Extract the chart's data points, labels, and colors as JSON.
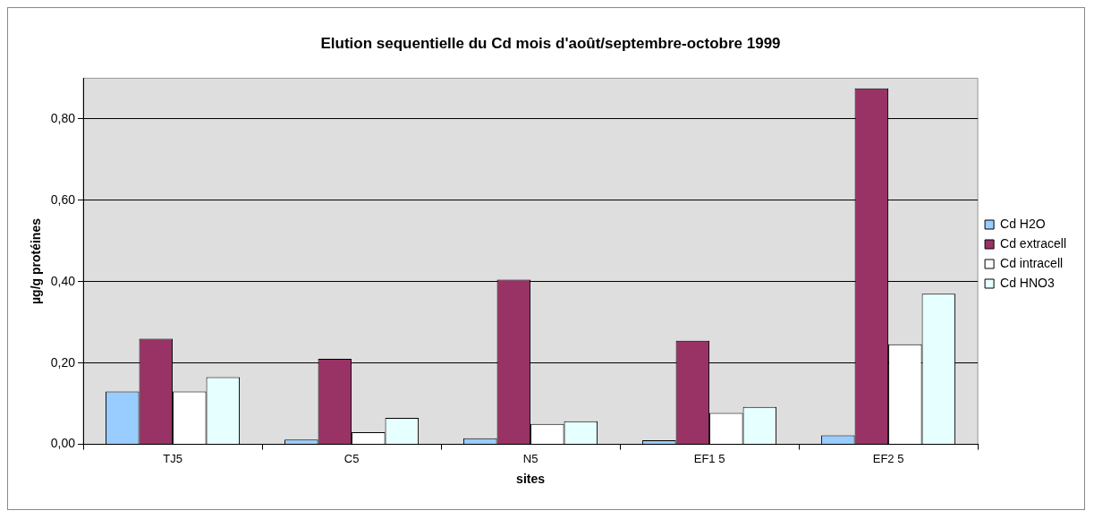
{
  "chart_data": {
    "type": "bar",
    "title": "Elution sequentielle du Cd mois d'août/septembre-octobre 1999",
    "xlabel": "sites",
    "ylabel": "µg/g protéines",
    "categories": [
      "TJ5",
      "C5",
      "N5",
      "EF1 5",
      "EF2 5"
    ],
    "series": [
      {
        "name": "Cd H2O",
        "color": "#99ccff",
        "values": [
          0.13,
          0.012,
          0.015,
          0.01,
          0.022
        ]
      },
      {
        "name": "Cd extracell",
        "color": "#993366",
        "values": [
          0.26,
          0.21,
          0.405,
          0.255,
          0.875
        ]
      },
      {
        "name": "Cd intracell",
        "color": "#ffffff",
        "values": [
          0.13,
          0.03,
          0.05,
          0.077,
          0.246
        ]
      },
      {
        "name": "Cd HNO3",
        "color": "#e6ffff",
        "values": [
          0.165,
          0.065,
          0.057,
          0.092,
          0.37
        ]
      }
    ],
    "ylim": [
      0,
      0.9
    ],
    "yticks": [
      {
        "value": 0,
        "label": "0,00"
      },
      {
        "value": 0.2,
        "label": "0,20"
      },
      {
        "value": 0.4,
        "label": "0,40"
      },
      {
        "value": 0.6,
        "label": "0,60"
      },
      {
        "value": 0.8,
        "label": "0,80"
      }
    ],
    "grid": "y",
    "legend": "right"
  }
}
